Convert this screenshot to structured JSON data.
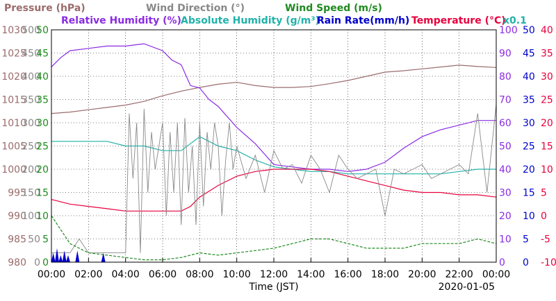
{
  "chart_data": {
    "type": "line",
    "date": "2020-01-05",
    "xlabel": "Time (JST)",
    "x_ticks": [
      "00:00",
      "02:00",
      "04:00",
      "06:00",
      "08:00",
      "10:00",
      "12:00",
      "14:00",
      "16:00",
      "18:00",
      "20:00",
      "22:00",
      "00:00"
    ],
    "x_range_hours": [
      0,
      24
    ],
    "grid": true,
    "legend_row1": [
      {
        "id": "pressure",
        "text": "Pressure (hPa)"
      },
      {
        "id": "winddir",
        "text": "Wind Direction (°)"
      },
      {
        "id": "windspeed",
        "text": "Wind Speed (m/s)"
      }
    ],
    "legend_row2": [
      {
        "id": "rh",
        "text": "Relative Humidity (%)"
      },
      {
        "id": "ah",
        "text": "Absolute Humidity (g/m³)"
      },
      {
        "id": "rain",
        "text": "Rain Rate(mm/h)"
      },
      {
        "id": "temp",
        "text": "Temperature (°C)"
      },
      {
        "id": "x01",
        "text": "x0.1"
      }
    ],
    "left_axes": [
      {
        "id": "pressure",
        "ticks": [
          "1030",
          "1025",
          "1020",
          "1015",
          "1010",
          "1005",
          "1000",
          "995",
          "990",
          "985",
          "980"
        ],
        "range": [
          980,
          1030
        ]
      },
      {
        "id": "winddir",
        "ticks": [
          "500",
          "450",
          "400",
          "350",
          "300",
          "250",
          "200",
          "150",
          "100",
          "50",
          "0"
        ],
        "range": [
          0,
          500
        ]
      },
      {
        "id": "windspeed",
        "ticks": [
          "50",
          "45",
          "40",
          "35",
          "30",
          "25",
          "20",
          "15",
          "10",
          "5",
          "0"
        ],
        "range": [
          0,
          50
        ]
      }
    ],
    "right_axes": [
      {
        "id": "rh",
        "ticks": [
          "100",
          "90",
          "80",
          "70",
          "60",
          "50",
          "40",
          "30",
          "20",
          "10",
          "0"
        ],
        "range": [
          0,
          100
        ]
      },
      {
        "id": "rain",
        "ticks": [
          "50",
          "45",
          "40",
          "35",
          "30",
          "25",
          "20",
          "15",
          "10",
          "5",
          "0"
        ],
        "range": [
          0,
          50
        ]
      },
      {
        "id": "temp",
        "ticks": [
          "40",
          "35",
          "30",
          "25",
          "20",
          "15",
          "10",
          "5",
          "0",
          "-5",
          "-10"
        ],
        "range": [
          -10,
          40
        ]
      }
    ],
    "colors": {
      "pressure": "#9b6b6b",
      "winddir": "#888888",
      "windspeed": "#1f8a1f",
      "rh": "#8a2be2",
      "ah": "#20b2aa",
      "rain": "#0000cc",
      "temp": "#e8003d",
      "x01": "#20b2aa"
    },
    "series": [
      {
        "id": "pressure",
        "name": "Pressure (hPa)",
        "axis_range": [
          980,
          1030
        ],
        "x": [
          0,
          1,
          2,
          3,
          4,
          5,
          6,
          7,
          8,
          9,
          10,
          11,
          12,
          13,
          14,
          15,
          16,
          17,
          18,
          19,
          20,
          21,
          22,
          23,
          24
        ],
        "values": [
          1012,
          1012.3,
          1012.8,
          1013.3,
          1013.8,
          1014.6,
          1015.8,
          1016.8,
          1017.6,
          1018.3,
          1018.7,
          1018,
          1017.6,
          1017.6,
          1017.8,
          1018.4,
          1019.1,
          1020,
          1020.9,
          1021.2,
          1021.6,
          1022,
          1022.4,
          1022.1,
          1021.9
        ]
      },
      {
        "id": "rh",
        "name": "Relative Humidity (%)",
        "axis_range": [
          0,
          100
        ],
        "x": [
          0,
          0.5,
          1,
          2,
          3,
          4,
          5,
          6,
          6.5,
          7,
          7.5,
          8,
          8.5,
          9,
          10,
          11,
          12,
          13,
          14,
          15,
          16,
          17,
          18,
          19,
          20,
          21,
          22,
          23,
          24
        ],
        "values": [
          84,
          88,
          91,
          92,
          93,
          93,
          94,
          91,
          87,
          85,
          76,
          75,
          70,
          67,
          58,
          51,
          42,
          41,
          40,
          40,
          39,
          40,
          43,
          49,
          54,
          57,
          59,
          61,
          61
        ]
      },
      {
        "id": "ah",
        "name": "Absolute Humidity (g/m³)",
        "axis_range": [
          0,
          50
        ],
        "x": [
          0,
          1,
          2,
          3,
          4,
          5,
          6,
          7,
          7.5,
          8,
          8.5,
          9,
          10,
          11,
          12,
          13,
          14,
          15,
          16,
          17,
          18,
          19,
          20,
          21,
          22,
          23,
          24
        ],
        "values": [
          26,
          26,
          26,
          26,
          25,
          25,
          24,
          24,
          25.5,
          27,
          26,
          25,
          24,
          22,
          20.5,
          20,
          19.5,
          19.5,
          19,
          19,
          19,
          19,
          19,
          19,
          19.5,
          20,
          20
        ]
      },
      {
        "id": "temp",
        "name": "Temperature (°C)",
        "axis_range": [
          -10,
          40
        ],
        "x": [
          0,
          1,
          2,
          3,
          4,
          5,
          6,
          7,
          7.5,
          8,
          9,
          10,
          11,
          12,
          13,
          14,
          15,
          16,
          17,
          18,
          19,
          20,
          21,
          22,
          23,
          24
        ],
        "values": [
          3.5,
          2.5,
          2,
          1.5,
          1,
          1,
          1,
          1,
          2,
          4,
          6.5,
          8.5,
          9.5,
          10,
          10,
          10,
          9.5,
          8.5,
          7.5,
          6.5,
          5.5,
          5,
          5,
          4.5,
          4.5,
          4
        ]
      },
      {
        "id": "winddir",
        "name": "Wind Direction (°)",
        "axis_range": [
          0,
          500
        ],
        "x": [
          0,
          1,
          1.5,
          2,
          2.5,
          3,
          3.5,
          4,
          4.2,
          4.4,
          4.6,
          4.8,
          5,
          5.2,
          5.4,
          5.6,
          5.8,
          6,
          6.2,
          6.4,
          6.6,
          6.8,
          7,
          7.2,
          7.4,
          7.6,
          7.8,
          8,
          8.2,
          8.4,
          8.6,
          8.8,
          9,
          9.2,
          9.4,
          9.6,
          9.8,
          10,
          10.5,
          11,
          11.5,
          12,
          12.5,
          13,
          13.5,
          14,
          14.5,
          15,
          15.5,
          16,
          16.5,
          17,
          17.5,
          18,
          18.5,
          19,
          19.5,
          20,
          20.5,
          21,
          21.5,
          22,
          22.5,
          23,
          23.5,
          24
        ],
        "values": [
          20,
          20,
          50,
          20,
          20,
          20,
          20,
          20,
          320,
          180,
          300,
          20,
          330,
          150,
          280,
          200,
          250,
          300,
          100,
          280,
          150,
          300,
          80,
          310,
          150,
          250,
          80,
          300,
          120,
          280,
          200,
          300,
          250,
          100,
          220,
          300,
          200,
          250,
          180,
          230,
          150,
          240,
          200,
          210,
          170,
          230,
          200,
          150,
          230,
          200,
          180,
          190,
          200,
          100,
          200,
          190,
          200,
          210,
          180,
          190,
          200,
          210,
          190,
          320,
          150,
          340
        ]
      },
      {
        "id": "windspeed",
        "name": "Wind Speed (m/s)",
        "axis_range": [
          0,
          50
        ],
        "x": [
          0,
          1,
          2,
          3,
          4,
          5,
          6,
          7,
          8,
          9,
          10,
          11,
          12,
          13,
          14,
          15,
          16,
          17,
          18,
          19,
          20,
          21,
          22,
          23,
          24
        ],
        "values": [
          10,
          4,
          2,
          1.5,
          1,
          0.5,
          0.5,
          1,
          2,
          1.5,
          2,
          2.5,
          3,
          4,
          5,
          5,
          4,
          3,
          3,
          3,
          4,
          4,
          4,
          5,
          4
        ]
      },
      {
        "id": "rain",
        "name": "Rain Rate(mm/h)",
        "axis_range": [
          0,
          50
        ],
        "x": [
          0.1,
          0.3,
          0.5,
          0.7,
          0.9,
          1.4,
          2.8
        ],
        "values": [
          2,
          3,
          1.5,
          2.5,
          1.5,
          2.5,
          2
        ]
      }
    ]
  }
}
